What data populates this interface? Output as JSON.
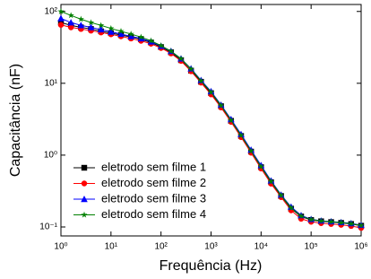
{
  "chart_data": {
    "type": "line",
    "x_label": "Frequência (Hz)",
    "y_label": "Capacitância (nF)",
    "xscale": "log",
    "yscale": "log",
    "xlim": [
      1,
      1000000
    ],
    "ylim": [
      0.075,
      125
    ],
    "xticks": [
      {
        "value": 1,
        "label": "10⁰"
      },
      {
        "value": 10,
        "label": "10¹"
      },
      {
        "value": 100,
        "label": "10²"
      },
      {
        "value": 1000,
        "label": "10³"
      },
      {
        "value": 10000,
        "label": "10⁴"
      },
      {
        "value": 100000,
        "label": "10⁵"
      },
      {
        "value": 1000000,
        "label": "10⁶"
      }
    ],
    "yticks": [
      {
        "value": 0.1,
        "label": "10⁻¹"
      },
      {
        "value": 1,
        "label": "10⁰"
      },
      {
        "value": 10,
        "label": "10¹"
      },
      {
        "value": 100,
        "label": "10²"
      }
    ],
    "legend_position": "lower-left",
    "x": [
      1,
      1.585,
      2.512,
      3.981,
      6.31,
      10,
      15.85,
      25.12,
      39.81,
      63.1,
      100,
      158.5,
      251.2,
      398.1,
      631,
      1000,
      1585,
      2512,
      3981,
      6310,
      10000,
      15850,
      25120,
      39810,
      63100,
      100000,
      158500,
      251200,
      398100,
      631000,
      1000000
    ],
    "series": [
      {
        "name": "eletrodo sem filme 1",
        "color": "#000000",
        "marker": "square",
        "values": [
          70,
          64,
          60,
          57,
          53,
          50,
          47,
          44,
          41,
          37,
          32,
          27,
          21,
          15,
          10.5,
          7.3,
          4.8,
          3.0,
          1.85,
          1.12,
          0.68,
          0.42,
          0.27,
          0.18,
          0.14,
          0.125,
          0.12,
          0.117,
          0.114,
          0.11,
          0.104
        ]
      },
      {
        "name": "eletrodo sem filme 2",
        "color": "#ff0000",
        "marker": "circle",
        "values": [
          65,
          60,
          57,
          54,
          51,
          48,
          45,
          42,
          39,
          35.5,
          31,
          26,
          20.5,
          14.7,
          10.2,
          7.0,
          4.6,
          2.9,
          1.78,
          1.08,
          0.65,
          0.4,
          0.26,
          0.17,
          0.13,
          0.118,
          0.113,
          0.11,
          0.107,
          0.103,
          0.097
        ]
      },
      {
        "name": "eletrodo sem filme 3",
        "color": "#0000ff",
        "marker": "triangle",
        "values": [
          80,
          70,
          64,
          60,
          56,
          52,
          48.5,
          45,
          42,
          38,
          33,
          28,
          22,
          16,
          11,
          7.7,
          5.0,
          3.15,
          1.95,
          1.18,
          0.72,
          0.44,
          0.28,
          0.19,
          0.145,
          0.128,
          0.122,
          0.119,
          0.116,
          0.112,
          0.106
        ]
      },
      {
        "name": "eletrodo sem filme 4",
        "color": "#008000",
        "marker": "star",
        "values": [
          100,
          88,
          78,
          70,
          64,
          58,
          53,
          48.5,
          44,
          39,
          33.5,
          28,
          22,
          15.8,
          10.8,
          7.5,
          4.9,
          3.05,
          1.88,
          1.14,
          0.69,
          0.43,
          0.275,
          0.185,
          0.142,
          0.127,
          0.121,
          0.118,
          0.115,
          0.111,
          0.105
        ]
      }
    ]
  }
}
